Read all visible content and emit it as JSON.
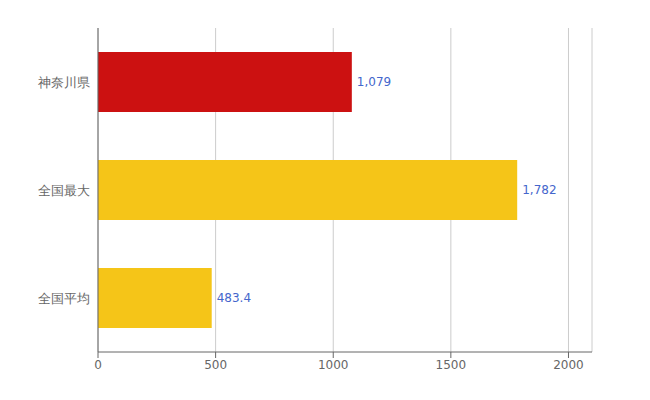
{
  "chart_data": {
    "type": "bar",
    "orientation": "horizontal",
    "categories": [
      "全国平均",
      "全国最大",
      "神奈川県"
    ],
    "values": [
      483.4,
      1782,
      1079
    ],
    "value_labels": [
      "483.4",
      "1,782",
      "1,079"
    ],
    "colors": [
      "#F5C518",
      "#F5C518",
      "#CC1111"
    ],
    "xlim": [
      0,
      2100
    ],
    "xticks": [
      0,
      500,
      1000,
      1500,
      2000
    ],
    "grid": true,
    "data_labels": true
  }
}
